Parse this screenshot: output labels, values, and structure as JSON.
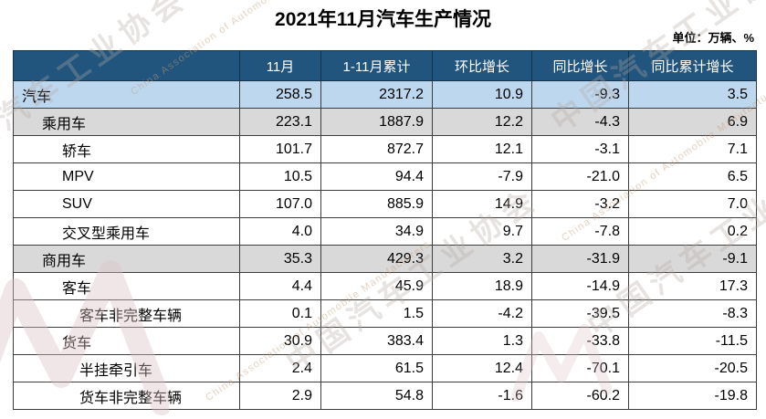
{
  "page": {
    "title": "2021年11月汽车生产情况",
    "unit_label": "单位：万辆、%"
  },
  "watermark": {
    "org_cn": "中国汽车工业协会",
    "org_en": "China Association of Automobile Manufacturers"
  },
  "colors": {
    "header_bg": "#21557D",
    "header_text": "#FFFFFF",
    "row_highlight_blue": "#BDD7EE",
    "row_highlight_gray": "#D9D9D9",
    "border": "#3D3D3D"
  },
  "chart_data": {
    "type": "table",
    "title": "2021年11月汽车生产情况",
    "unit": "万辆、%",
    "columns": [
      "",
      "11月",
      "1-11月累计",
      "环比增长",
      "同比增长",
      "同比累计增长"
    ],
    "rows": [
      {
        "label": "汽车",
        "indent": 0,
        "style": "blue",
        "values": [
          "258.5",
          "2317.2",
          "10.9",
          "-9.3",
          "3.5"
        ]
      },
      {
        "label": "乘用车",
        "indent": 1,
        "style": "gray",
        "values": [
          "223.1",
          "1887.9",
          "12.2",
          "-4.3",
          "6.9"
        ]
      },
      {
        "label": "轿车",
        "indent": 2,
        "style": "white",
        "values": [
          "101.7",
          "872.7",
          "12.1",
          "-3.1",
          "7.1"
        ]
      },
      {
        "label": "MPV",
        "indent": 2,
        "style": "white",
        "values": [
          "10.5",
          "94.4",
          "-7.9",
          "-21.0",
          "6.5"
        ]
      },
      {
        "label": "SUV",
        "indent": 2,
        "style": "white",
        "values": [
          "107.0",
          "885.9",
          "14.9",
          "-3.2",
          "7.0"
        ]
      },
      {
        "label": "交叉型乘用车",
        "indent": 2,
        "style": "white",
        "values": [
          "4.0",
          "34.9",
          "9.7",
          "-7.8",
          "0.2"
        ]
      },
      {
        "label": "商用车",
        "indent": 1,
        "style": "gray",
        "values": [
          "35.3",
          "429.3",
          "3.2",
          "-31.9",
          "-9.1"
        ]
      },
      {
        "label": "客车",
        "indent": 2,
        "style": "white",
        "values": [
          "4.4",
          "45.9",
          "18.9",
          "-14.9",
          "17.3"
        ]
      },
      {
        "label": "客车非完整车辆",
        "indent": 3,
        "style": "white",
        "values": [
          "0.1",
          "1.5",
          "-4.2",
          "-39.5",
          "-8.3"
        ]
      },
      {
        "label": "货车",
        "indent": 2,
        "style": "white",
        "values": [
          "30.9",
          "383.4",
          "1.3",
          "-33.8",
          "-11.5"
        ]
      },
      {
        "label": "半挂牵引车",
        "indent": 3,
        "style": "white",
        "values": [
          "2.4",
          "61.5",
          "12.4",
          "-70.1",
          "-20.5"
        ]
      },
      {
        "label": "货车非完整车辆",
        "indent": 3,
        "style": "white",
        "values": [
          "2.9",
          "54.8",
          "-1.6",
          "-60.2",
          "-19.8"
        ]
      }
    ]
  }
}
